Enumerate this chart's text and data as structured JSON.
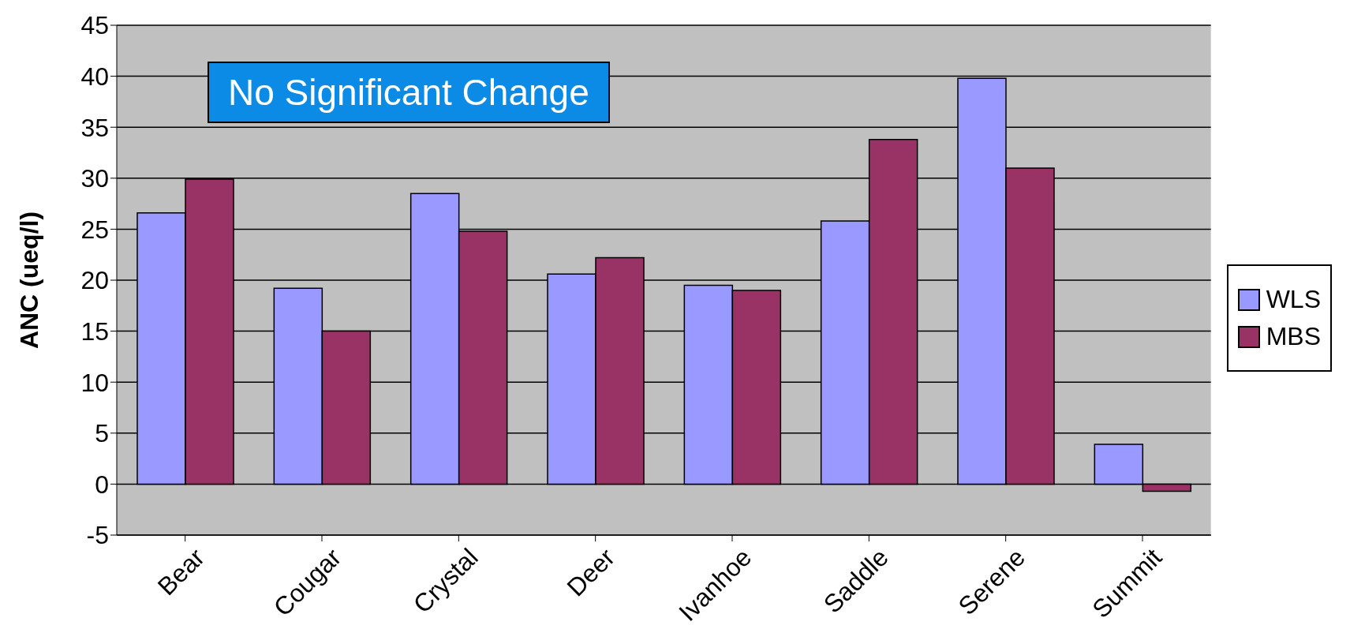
{
  "chart_data": {
    "type": "bar",
    "ylabel": "ANC (ueq/l)",
    "categories": [
      "Bear",
      "Cougar",
      "Crystal",
      "Deer",
      "Ivanhoe",
      "Saddle",
      "Serene",
      "Summit"
    ],
    "series": [
      {
        "name": "WLS",
        "color": "#9999ff",
        "values": [
          26.6,
          19.2,
          28.5,
          20.6,
          19.5,
          25.8,
          39.8,
          3.9
        ]
      },
      {
        "name": "MBS",
        "color": "#993366",
        "values": [
          29.9,
          15.0,
          24.8,
          22.2,
          19.0,
          33.8,
          31.0,
          -0.7
        ]
      }
    ],
    "ylim": [
      -5,
      45
    ],
    "yticks": [
      -5,
      0,
      5,
      10,
      15,
      20,
      25,
      30,
      35,
      40,
      45
    ],
    "grid": "y",
    "legend": "right",
    "annotations": [
      "No Significant Change"
    ]
  }
}
